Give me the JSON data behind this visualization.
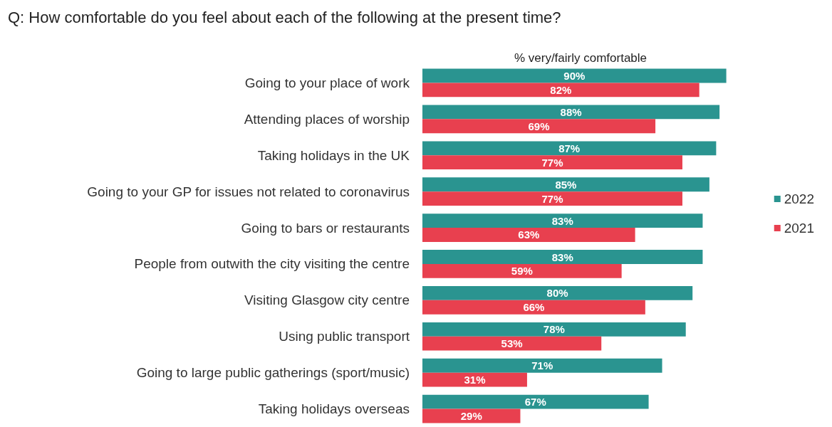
{
  "chart_data": {
    "type": "bar",
    "orientation": "horizontal",
    "title": "Q: How comfortable do you feel about each of the following at the present time?",
    "subtitle": "% very/fairly comfortable",
    "categories": [
      "Going to your place of work",
      "Attending places of worship",
      "Taking holidays in the UK",
      "Going to your GP for issues not related to coronavirus",
      "Going to bars or restaurants",
      "People from outwith the city visiting the centre",
      "Visiting Glasgow city centre",
      "Using public transport",
      "Going to large public gatherings (sport/music)",
      "Taking holidays overseas"
    ],
    "series": [
      {
        "name": "2022",
        "color": "#2a9490",
        "values": [
          90,
          88,
          87,
          85,
          83,
          83,
          80,
          78,
          71,
          67
        ],
        "value_labels": [
          "90%",
          "88%",
          "87%",
          "85%",
          "83%",
          "83%",
          "80%",
          "78%",
          "71%",
          "67%"
        ]
      },
      {
        "name": "2021",
        "color": "#e8404f",
        "values": [
          82,
          69,
          77,
          77,
          63,
          59,
          66,
          53,
          31,
          29
        ],
        "value_labels": [
          "82%",
          "69%",
          "77%",
          "77%",
          "63%",
          "59%",
          "66%",
          "53%",
          "31%",
          "29%"
        ]
      }
    ],
    "legend": "right"
  }
}
